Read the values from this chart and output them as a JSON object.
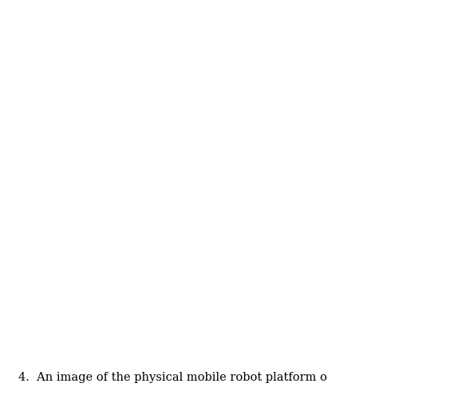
{
  "caption": "4.  An image of the physical mobile robot platform o",
  "caption_fontsize": 10.5,
  "caption_font": "serif",
  "caption_color": "#000000",
  "background_color": "#ffffff",
  "fig_width": 5.84,
  "fig_height": 5.2,
  "dpi": 100
}
